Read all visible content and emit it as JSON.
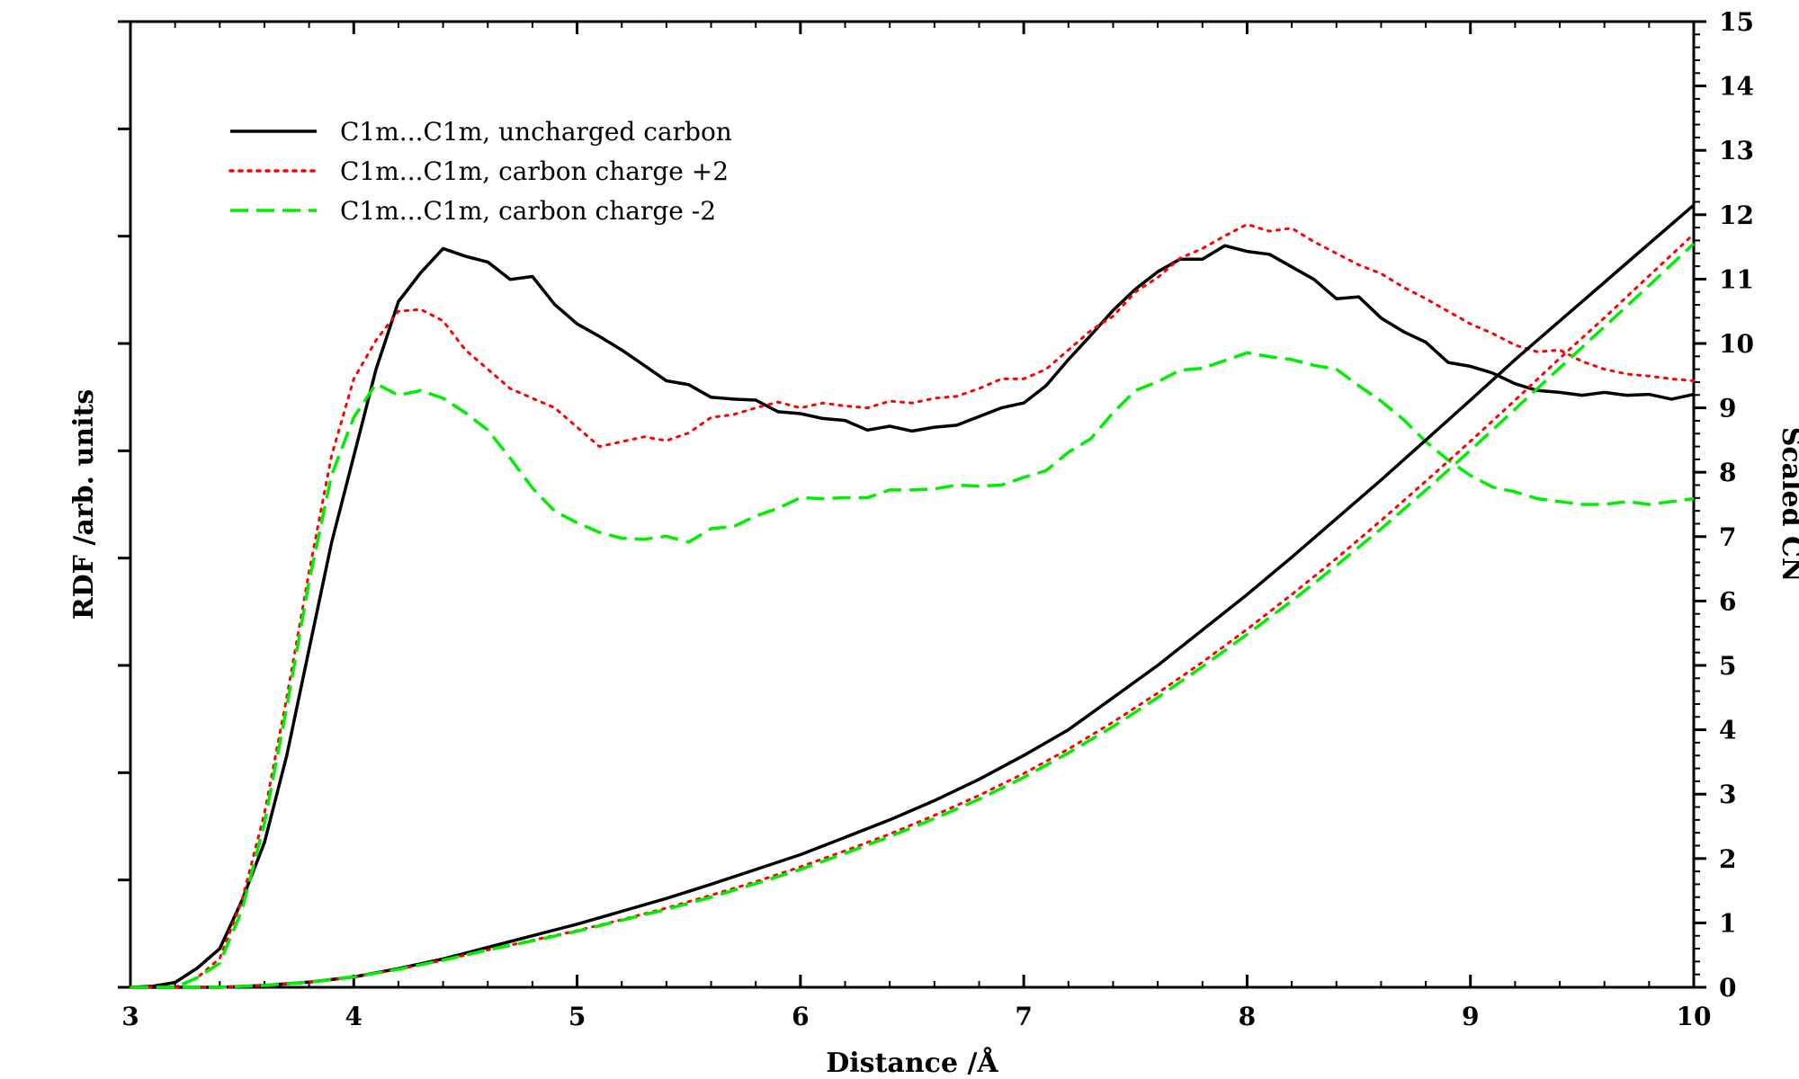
{
  "chart_data": {
    "type": "line",
    "xlabel": "Distance /Å",
    "ylabel": "RDF /arb. units",
    "y2label": "Scaled CN",
    "xlim": [
      3,
      10
    ],
    "ylim_left": [
      0,
      1
    ],
    "ylim_right": [
      0,
      15
    ],
    "x_ticks": [
      "3",
      "4",
      "5",
      "6",
      "7",
      "8",
      "9",
      "10"
    ],
    "y2_ticks": [
      "0",
      "1",
      "2",
      "3",
      "4",
      "5",
      "6",
      "7",
      "8",
      "9",
      "10",
      "11",
      "12",
      "13",
      "14",
      "15"
    ],
    "grid": false,
    "legend_position": "top-left",
    "series": [
      {
        "name": "C1m...C1m, uncharged carbon",
        "style": "solid",
        "color": "#000000",
        "axis": "left",
        "x": [
          3.0,
          3.1,
          3.2,
          3.3,
          3.4,
          3.5,
          3.6,
          3.7,
          3.8,
          3.9,
          4.0,
          4.1,
          4.2,
          4.3,
          4.4,
          4.5,
          4.6,
          4.7,
          4.8,
          4.9,
          5.0,
          5.1,
          5.2,
          5.3,
          5.4,
          5.5,
          5.6,
          5.7,
          5.8,
          5.9,
          6.0,
          6.1,
          6.2,
          6.3,
          6.4,
          6.5,
          6.6,
          6.7,
          6.8,
          6.9,
          7.0,
          7.1,
          7.2,
          7.3,
          7.4,
          7.5,
          7.6,
          7.7,
          7.8,
          7.9,
          8.0,
          8.1,
          8.2,
          8.3,
          8.4,
          8.5,
          8.6,
          8.7,
          8.8,
          8.9,
          9.0,
          9.1,
          9.2,
          9.3,
          9.4,
          9.5,
          9.6,
          9.7,
          9.8,
          9.9,
          10.0
        ],
        "y": [
          0.0,
          0.001,
          0.005,
          0.02,
          0.04,
          0.09,
          0.15,
          0.24,
          0.35,
          0.46,
          0.55,
          0.64,
          0.71,
          0.74,
          0.765,
          0.757,
          0.751,
          0.733,
          0.736,
          0.707,
          0.687,
          0.674,
          0.66,
          0.644,
          0.628,
          0.624,
          0.611,
          0.609,
          0.608,
          0.596,
          0.594,
          0.589,
          0.587,
          0.577,
          0.581,
          0.576,
          0.58,
          0.582,
          0.591,
          0.6,
          0.605,
          0.623,
          0.65,
          0.675,
          0.701,
          0.723,
          0.741,
          0.754,
          0.754,
          0.768,
          0.762,
          0.759,
          0.746,
          0.733,
          0.713,
          0.715,
          0.693,
          0.679,
          0.668,
          0.647,
          0.643,
          0.636,
          0.625,
          0.618,
          0.616,
          0.613,
          0.616,
          0.613,
          0.614,
          0.609,
          0.614
        ]
      },
      {
        "name": "C1m...C1m, carbon charge +2",
        "style": "dotted",
        "color": "#ff0000",
        "axis": "left",
        "x": [
          3.0,
          3.1,
          3.2,
          3.3,
          3.4,
          3.5,
          3.6,
          3.7,
          3.8,
          3.9,
          4.0,
          4.1,
          4.2,
          4.3,
          4.4,
          4.5,
          4.6,
          4.7,
          4.8,
          4.9,
          5.0,
          5.1,
          5.2,
          5.3,
          5.4,
          5.5,
          5.6,
          5.7,
          5.8,
          5.9,
          6.0,
          6.1,
          6.2,
          6.3,
          6.4,
          6.5,
          6.6,
          6.7,
          6.8,
          6.9,
          7.0,
          7.1,
          7.2,
          7.3,
          7.4,
          7.5,
          7.6,
          7.7,
          7.8,
          7.9,
          8.0,
          8.1,
          8.2,
          8.3,
          8.4,
          8.5,
          8.6,
          8.7,
          8.8,
          8.9,
          9.0,
          9.1,
          9.2,
          9.3,
          9.4,
          9.5,
          9.6,
          9.7,
          9.8,
          9.9,
          10.0
        ],
        "y": [
          0.0,
          0.0,
          0.0,
          0.01,
          0.03,
          0.09,
          0.18,
          0.3,
          0.43,
          0.55,
          0.63,
          0.67,
          0.7,
          0.702,
          0.69,
          0.66,
          0.64,
          0.62,
          0.61,
          0.6,
          0.58,
          0.56,
          0.565,
          0.57,
          0.566,
          0.574,
          0.59,
          0.593,
          0.6,
          0.606,
          0.6,
          0.605,
          0.602,
          0.6,
          0.607,
          0.605,
          0.61,
          0.612,
          0.62,
          0.63,
          0.63,
          0.64,
          0.66,
          0.68,
          0.695,
          0.72,
          0.735,
          0.755,
          0.765,
          0.778,
          0.79,
          0.783,
          0.786,
          0.772,
          0.76,
          0.748,
          0.739,
          0.725,
          0.713,
          0.7,
          0.687,
          0.677,
          0.665,
          0.658,
          0.66,
          0.648,
          0.64,
          0.635,
          0.633,
          0.63,
          0.628
        ]
      },
      {
        "name": "C1m...C1m, carbon charge -2",
        "style": "dashed",
        "color": "#00ee00",
        "axis": "left",
        "x": [
          3.0,
          3.1,
          3.2,
          3.3,
          3.4,
          3.5,
          3.6,
          3.7,
          3.8,
          3.9,
          4.0,
          4.1,
          4.2,
          4.3,
          4.4,
          4.5,
          4.6,
          4.7,
          4.8,
          4.9,
          5.0,
          5.1,
          5.2,
          5.3,
          5.4,
          5.5,
          5.6,
          5.7,
          5.8,
          5.9,
          6.0,
          6.1,
          6.2,
          6.3,
          6.4,
          6.5,
          6.6,
          6.7,
          6.8,
          6.9,
          7.0,
          7.1,
          7.2,
          7.3,
          7.4,
          7.5,
          7.6,
          7.7,
          7.8,
          7.9,
          8.0,
          8.1,
          8.2,
          8.3,
          8.4,
          8.5,
          8.6,
          8.7,
          8.8,
          8.9,
          9.0,
          9.1,
          9.2,
          9.3,
          9.4,
          9.5,
          9.6,
          9.7,
          9.8,
          9.9,
          10.0
        ],
        "y": [
          0.0,
          0.0,
          0.0,
          0.01,
          0.025,
          0.08,
          0.17,
          0.29,
          0.42,
          0.53,
          0.59,
          0.625,
          0.613,
          0.618,
          0.61,
          0.595,
          0.577,
          0.548,
          0.517,
          0.493,
          0.481,
          0.471,
          0.465,
          0.464,
          0.467,
          0.461,
          0.475,
          0.477,
          0.488,
          0.496,
          0.507,
          0.506,
          0.507,
          0.507,
          0.515,
          0.515,
          0.516,
          0.52,
          0.519,
          0.52,
          0.528,
          0.535,
          0.554,
          0.568,
          0.595,
          0.618,
          0.627,
          0.639,
          0.641,
          0.649,
          0.657,
          0.653,
          0.65,
          0.644,
          0.64,
          0.623,
          0.607,
          0.588,
          0.565,
          0.546,
          0.53,
          0.518,
          0.513,
          0.506,
          0.503,
          0.5,
          0.5,
          0.503,
          0.5,
          0.503,
          0.506
        ]
      },
      {
        "name": "C1m...C1m, uncharged carbon (CN)",
        "style": "solid",
        "color": "#000000",
        "axis": "right",
        "in_legend": false,
        "x": [
          3.0,
          3.2,
          3.4,
          3.6,
          3.8,
          4.0,
          4.2,
          4.4,
          4.6,
          4.8,
          5.0,
          5.2,
          5.4,
          5.6,
          5.8,
          6.0,
          6.2,
          6.4,
          6.6,
          6.8,
          7.0,
          7.2,
          7.4,
          7.6,
          7.8,
          8.0,
          8.2,
          8.4,
          8.6,
          8.8,
          9.0,
          9.2,
          9.4,
          9.6,
          9.8,
          10.0
        ],
        "y": [
          0.0,
          0.0,
          0.0,
          0.03,
          0.08,
          0.16,
          0.29,
          0.44,
          0.62,
          0.8,
          0.98,
          1.18,
          1.38,
          1.6,
          1.83,
          2.06,
          2.33,
          2.6,
          2.9,
          3.23,
          3.6,
          4.0,
          4.5,
          5.0,
          5.55,
          6.1,
          6.68,
          7.28,
          7.88,
          8.5,
          9.12,
          9.75,
          10.35,
          10.95,
          11.55,
          12.15
        ]
      },
      {
        "name": "C1m...C1m, carbon charge +2 (CN)",
        "style": "dotted",
        "color": "#ff0000",
        "axis": "right",
        "in_legend": false,
        "x": [
          3.0,
          3.2,
          3.4,
          3.6,
          3.8,
          4.0,
          4.2,
          4.4,
          4.6,
          4.8,
          5.0,
          5.2,
          5.4,
          5.6,
          5.8,
          6.0,
          6.2,
          6.4,
          6.6,
          6.8,
          7.0,
          7.2,
          7.4,
          7.6,
          7.8,
          8.0,
          8.2,
          8.4,
          8.6,
          8.8,
          9.0,
          9.2,
          9.4,
          9.6,
          9.8,
          10.0
        ],
        "y": [
          0.0,
          0.0,
          0.0,
          0.03,
          0.08,
          0.16,
          0.28,
          0.42,
          0.58,
          0.73,
          0.88,
          1.05,
          1.23,
          1.43,
          1.64,
          1.87,
          2.12,
          2.38,
          2.67,
          2.98,
          3.32,
          3.7,
          4.12,
          4.57,
          5.05,
          5.56,
          6.1,
          6.66,
          7.25,
          7.86,
          8.48,
          9.12,
          9.77,
          10.4,
          11.05,
          11.7
        ]
      },
      {
        "name": "C1m...C1m, carbon charge -2 (CN)",
        "style": "dashed",
        "color": "#00ee00",
        "axis": "right",
        "in_legend": false,
        "x": [
          3.0,
          3.2,
          3.4,
          3.6,
          3.8,
          4.0,
          4.2,
          4.4,
          4.6,
          4.8,
          5.0,
          5.2,
          5.4,
          5.6,
          5.8,
          6.0,
          6.2,
          6.4,
          6.6,
          6.8,
          7.0,
          7.2,
          7.4,
          7.6,
          7.8,
          8.0,
          8.2,
          8.4,
          8.6,
          8.8,
          9.0,
          9.2,
          9.4,
          9.6,
          9.8,
          10.0
        ],
        "y": [
          0.0,
          0.0,
          0.0,
          0.03,
          0.08,
          0.16,
          0.28,
          0.42,
          0.58,
          0.72,
          0.87,
          1.04,
          1.21,
          1.4,
          1.61,
          1.83,
          2.08,
          2.34,
          2.62,
          2.92,
          3.26,
          3.64,
          4.05,
          4.5,
          4.98,
          5.48,
          6.0,
          6.55,
          7.12,
          7.72,
          8.34,
          8.98,
          9.62,
          10.26,
          10.9,
          11.55
        ]
      }
    ]
  }
}
